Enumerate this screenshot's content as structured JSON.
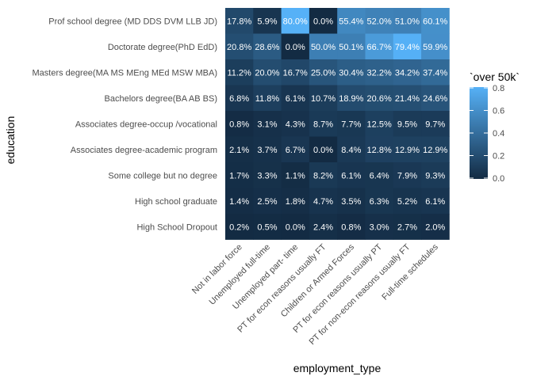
{
  "chart_data": {
    "type": "heatmap",
    "xlabel": "employment_type",
    "ylabel": "education",
    "x_categories": [
      "Not in labor force",
      "Unemployed full-time",
      "Unemployed part- time",
      "PT for econ reasons usually FT",
      "Children or Armed Forces",
      "PT for econ reasons usually PT",
      "PT for non-econ reasons usually FT",
      "Full-time schedules"
    ],
    "y_categories": [
      "Prof school degree (MD DDS DVM LLB JD)",
      "Doctorate degree(PhD EdD)",
      "Masters degree(MA MS MEng MEd MSW MBA)",
      "Bachelors degree(BA AB BS)",
      "Associates degree-occup /vocational",
      "Associates degree-academic program",
      "Some college but no degree",
      "High school graduate",
      "High School Dropout"
    ],
    "values": [
      [
        0.178,
        0.059,
        0.8,
        0.0,
        0.554,
        0.52,
        0.51,
        0.601
      ],
      [
        0.208,
        0.286,
        0.0,
        0.5,
        0.501,
        0.667,
        0.794,
        0.599
      ],
      [
        0.112,
        0.2,
        0.167,
        0.25,
        0.304,
        0.322,
        0.342,
        0.374
      ],
      [
        0.068,
        0.118,
        0.061,
        0.107,
        0.189,
        0.206,
        0.214,
        0.246
      ],
      [
        0.008,
        0.031,
        0.043,
        0.087,
        0.077,
        0.125,
        0.095,
        0.097
      ],
      [
        0.021,
        0.037,
        0.067,
        0.0,
        0.084,
        0.128,
        0.129,
        0.129
      ],
      [
        0.017,
        0.033,
        0.011,
        0.082,
        0.061,
        0.064,
        0.079,
        0.093
      ],
      [
        0.014,
        0.025,
        0.018,
        0.047,
        0.035,
        0.063,
        0.052,
        0.061
      ],
      [
        0.002,
        0.005,
        0.0,
        0.024,
        0.008,
        0.03,
        0.027,
        0.02
      ]
    ],
    "labels": [
      [
        "17.8%",
        "5.9%",
        "80.0%",
        "0.0%",
        "55.4%",
        "52.0%",
        "51.0%",
        "60.1%"
      ],
      [
        "20.8%",
        "28.6%",
        "0.0%",
        "50.0%",
        "50.1%",
        "66.7%",
        "79.4%",
        "59.9%"
      ],
      [
        "11.2%",
        "20.0%",
        "16.7%",
        "25.0%",
        "30.4%",
        "32.2%",
        "34.2%",
        "37.4%"
      ],
      [
        "6.8%",
        "11.8%",
        "6.1%",
        "10.7%",
        "18.9%",
        "20.6%",
        "21.4%",
        "24.6%"
      ],
      [
        "0.8%",
        "3.1%",
        "4.3%",
        "8.7%",
        "7.7%",
        "12.5%",
        "9.5%",
        "9.7%"
      ],
      [
        "2.1%",
        "3.7%",
        "6.7%",
        "0.0%",
        "8.4%",
        "12.8%",
        "12.9%",
        "12.9%"
      ],
      [
        "1.7%",
        "3.3%",
        "1.1%",
        "8.2%",
        "6.1%",
        "6.4%",
        "7.9%",
        "9.3%"
      ],
      [
        "1.4%",
        "2.5%",
        "1.8%",
        "4.7%",
        "3.5%",
        "6.3%",
        "5.2%",
        "6.1%"
      ],
      [
        "0.2%",
        "0.5%",
        "0.0%",
        "2.4%",
        "0.8%",
        "3.0%",
        "2.7%",
        "2.0%"
      ]
    ],
    "legend": {
      "title": "`over 50k`",
      "ticks": [
        {
          "value": 0.0,
          "label": "0.0"
        },
        {
          "value": 0.2,
          "label": "0.2"
        },
        {
          "value": 0.4,
          "label": "0.4"
        },
        {
          "value": 0.6,
          "label": "0.6"
        },
        {
          "value": 0.8,
          "label": "0.8"
        }
      ],
      "range": [
        0.0,
        0.8
      ],
      "placement": "right"
    },
    "colors": {
      "low": "#132B43",
      "high": "#56B1F7",
      "cell_text": "#ffffff"
    },
    "grid": false
  }
}
